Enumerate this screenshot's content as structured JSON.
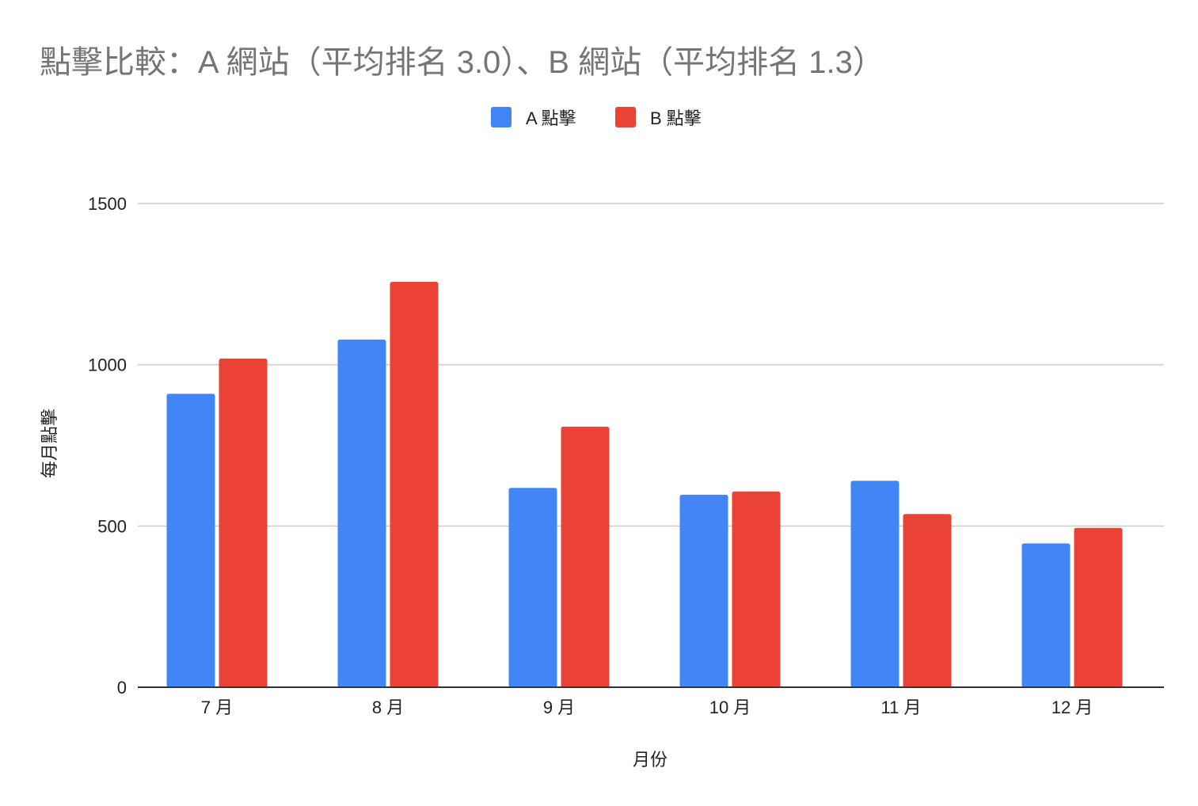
{
  "chart_data": {
    "type": "bar",
    "title": "點擊比較：A 網站（平均排名 3.0）、B 網站（平均排名 1.3）",
    "xlabel": "月份",
    "ylabel": "每月點擊",
    "categories": [
      "7 月",
      "8 月",
      "9 月",
      "10 月",
      "11 月",
      "12 月"
    ],
    "series": [
      {
        "name": "A 點擊",
        "color": "#4285f4",
        "values": [
          910,
          1078,
          618,
          597,
          640,
          446
        ]
      },
      {
        "name": "B 點擊",
        "color": "#ea4335",
        "values": [
          1019,
          1257,
          808,
          607,
          537,
          494
        ]
      }
    ],
    "ylim": [
      0,
      1500
    ],
    "yticks": [
      0,
      500,
      1000,
      1500
    ],
    "ytick_labels": [
      "0",
      "500",
      "1000",
      "1500"
    ],
    "grid": true,
    "legend_position": "top-center"
  }
}
